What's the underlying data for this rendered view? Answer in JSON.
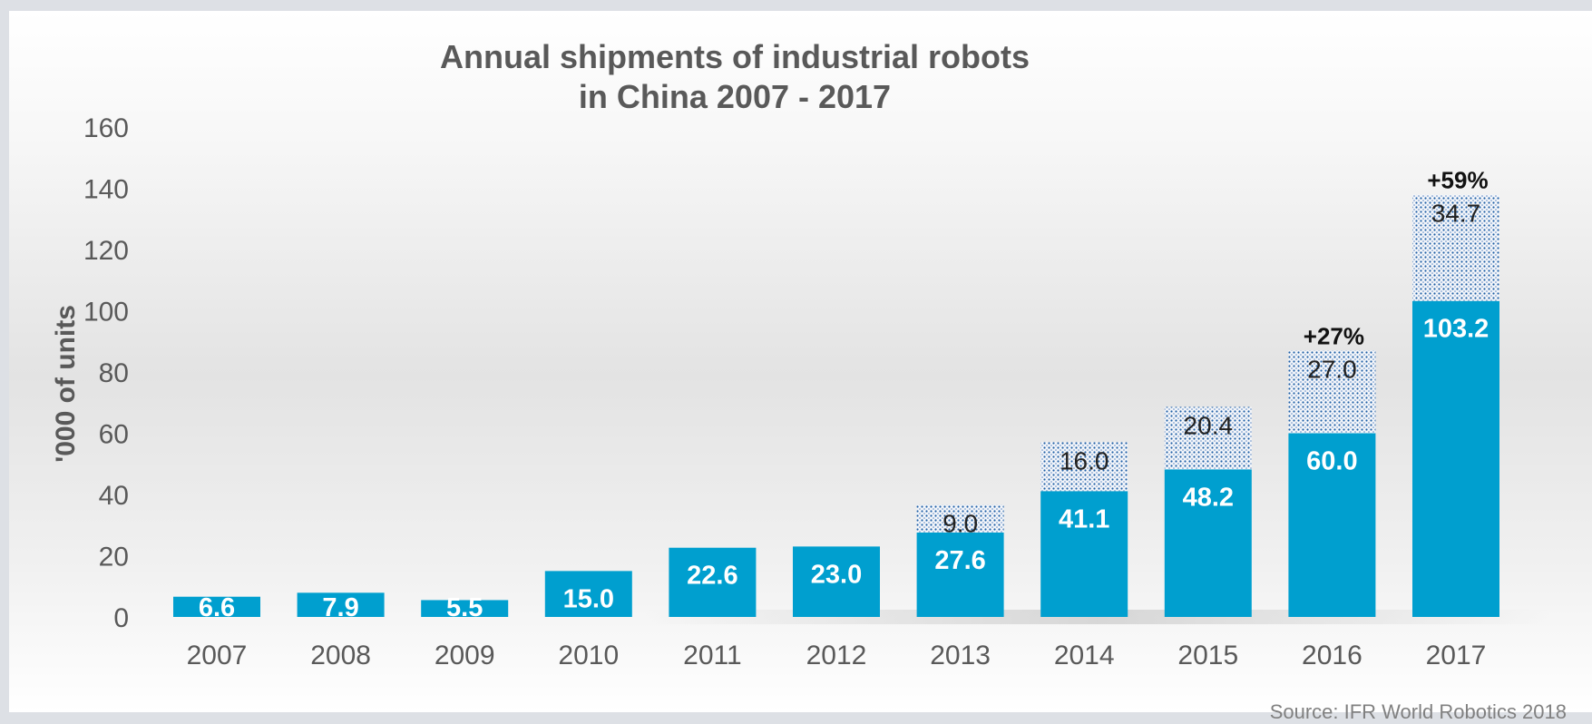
{
  "chart_data": {
    "type": "bar",
    "stacked": true,
    "title": "Annual shipments of industrial robots",
    "subtitle": "in China 2007 - 2017",
    "ylabel": "'000 of units",
    "xlabel": "",
    "ylim": [
      0,
      160
    ],
    "yticks": [
      "0",
      "20",
      "40",
      "60",
      "80",
      "100",
      "120",
      "140",
      "160"
    ],
    "categories": [
      "2007",
      "2008",
      "2009",
      "2010",
      "2011",
      "2012",
      "2013",
      "2014",
      "2015",
      "2016",
      "2017"
    ],
    "series": [
      {
        "values": [
          6.6,
          7.9,
          5.5,
          15.0,
          22.6,
          23.0,
          27.6,
          41.1,
          48.2,
          60.0,
          103.2
        ],
        "labels": [
          "6.6",
          "7.9",
          "5.5",
          "15.0",
          "22.6",
          "23.0",
          "27.6",
          "41.1",
          "48.2",
          "60.0",
          "103.2"
        ],
        "color": "#009fcf"
      },
      {
        "values": [
          null,
          null,
          null,
          null,
          null,
          null,
          9.0,
          16.0,
          20.4,
          27.0,
          34.7
        ],
        "labels": [
          "",
          "",
          "",
          "",
          "",
          "",
          "9.0",
          "16.0",
          "20.4",
          "27.0",
          "34.7"
        ],
        "color": "#1f5fa6"
      }
    ],
    "annotations": [
      {
        "category": "2016",
        "text": "+27%"
      },
      {
        "category": "2017",
        "text": "+59%"
      }
    ],
    "source": "Source: IFR World Robotics 2018",
    "grid": false,
    "legend": "none"
  }
}
